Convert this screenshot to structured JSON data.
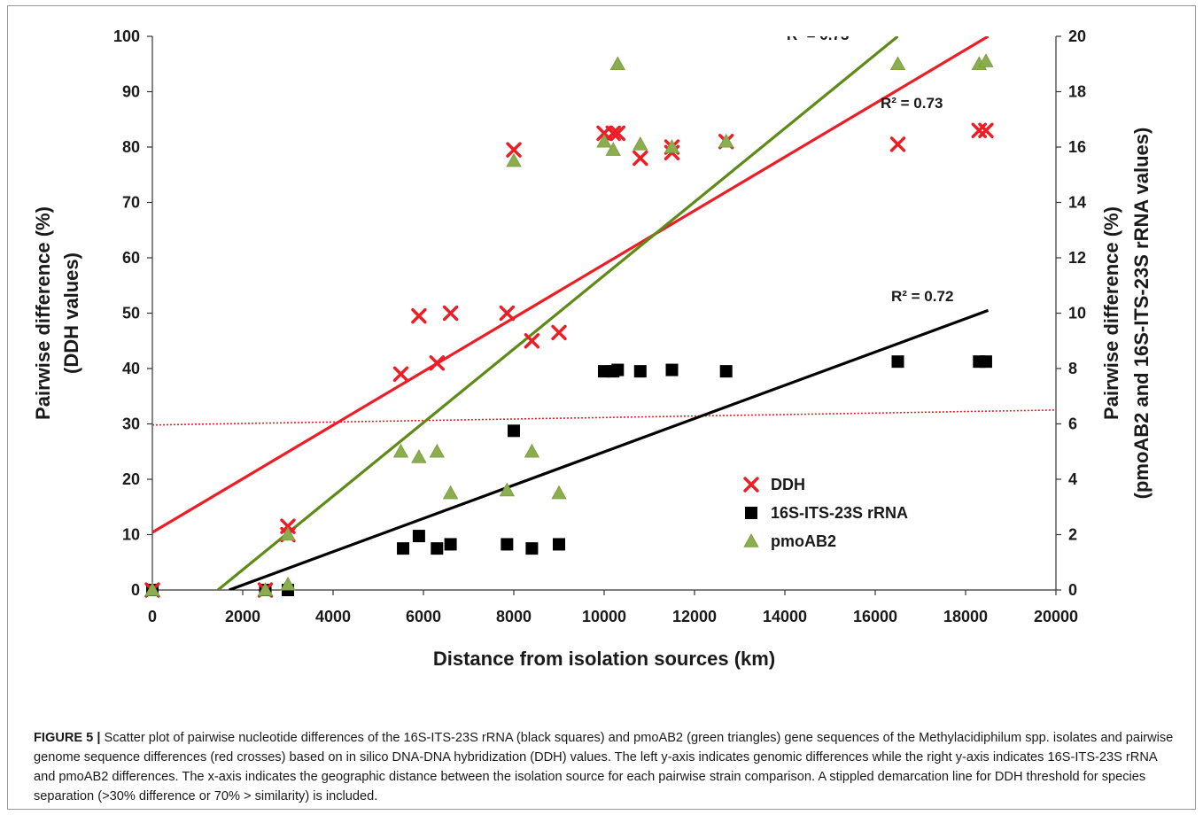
{
  "chart_data": {
    "type": "scatter",
    "xlabel": "Distance from isolation sources (km)",
    "ylabel_left": [
      "Pairwise difference (%)",
      "(DDH values)"
    ],
    "ylabel_right": [
      "Pairwise difference (%)",
      "(pmoAB2 and 16S-ITS-23S rRNA values)"
    ],
    "xlim": [
      0,
      20000
    ],
    "ylim_left": [
      0,
      100
    ],
    "ylim_right": [
      0,
      20
    ],
    "x_ticks": [
      0,
      2000,
      4000,
      6000,
      8000,
      10000,
      12000,
      14000,
      16000,
      18000,
      20000
    ],
    "y_ticks_left": [
      0,
      10,
      20,
      30,
      40,
      50,
      60,
      70,
      80,
      90,
      100
    ],
    "y_ticks_right": [
      0,
      2,
      4,
      6,
      8,
      10,
      12,
      14,
      16,
      18,
      20
    ],
    "grid": false,
    "legend_position": "lower-right",
    "series": [
      {
        "name": "DDH",
        "axis": "left",
        "marker": "x",
        "color": "#ee1c25",
        "points": [
          [
            0,
            0
          ],
          [
            2500,
            0
          ],
          [
            3000,
            11.5
          ],
          [
            3000,
            10
          ],
          [
            5500,
            39
          ],
          [
            5900,
            49.5
          ],
          [
            6300,
            41
          ],
          [
            6600,
            50
          ],
          [
            7850,
            50
          ],
          [
            8000,
            79.5
          ],
          [
            8400,
            45
          ],
          [
            9000,
            46.5
          ],
          [
            10000,
            82.5
          ],
          [
            10200,
            82.5
          ],
          [
            10300,
            82.5
          ],
          [
            10800,
            78
          ],
          [
            11500,
            80
          ],
          [
            11500,
            79
          ],
          [
            12700,
            81
          ],
          [
            16500,
            80.5
          ],
          [
            18300,
            83
          ],
          [
            18450,
            83
          ]
        ],
        "trendline": {
          "x": [
            0,
            18500
          ],
          "y": [
            10.4,
            100
          ],
          "r2_label": "R² = 0.73"
        }
      },
      {
        "name": "16S-ITS-23S rRNA",
        "axis": "right",
        "marker": "square",
        "color": "#000000",
        "points": [
          [
            0,
            0
          ],
          [
            2500,
            0
          ],
          [
            3000,
            0
          ],
          [
            5550,
            1.5
          ],
          [
            5900,
            1.95
          ],
          [
            6300,
            1.5
          ],
          [
            6600,
            1.65
          ],
          [
            7850,
            1.65
          ],
          [
            8000,
            5.75
          ],
          [
            8400,
            1.5
          ],
          [
            9000,
            1.65
          ],
          [
            10000,
            7.9
          ],
          [
            10200,
            7.9
          ],
          [
            10300,
            7.95
          ],
          [
            10800,
            7.9
          ],
          [
            11500,
            7.95
          ],
          [
            12700,
            7.9
          ],
          [
            16500,
            8.25
          ],
          [
            18300,
            8.25
          ],
          [
            18450,
            8.25
          ]
        ],
        "trendline": {
          "x": [
            1700,
            18500
          ],
          "y": [
            0,
            10.1
          ],
          "r2_label": "R² = 0.72"
        }
      },
      {
        "name": "pmoAB2",
        "axis": "right",
        "marker": "triangle",
        "color": "#8aad4e",
        "points": [
          [
            0,
            0
          ],
          [
            2500,
            0
          ],
          [
            3000,
            0.2
          ],
          [
            3000,
            2
          ],
          [
            5500,
            5
          ],
          [
            5900,
            4.8
          ],
          [
            6300,
            5
          ],
          [
            6600,
            3.5
          ],
          [
            7850,
            3.6
          ],
          [
            8000,
            15.5
          ],
          [
            8400,
            5
          ],
          [
            9000,
            3.5
          ],
          [
            10000,
            16.2
          ],
          [
            10200,
            15.9
          ],
          [
            10300,
            19
          ],
          [
            10800,
            16.1
          ],
          [
            11500,
            16
          ],
          [
            12700,
            16.2
          ],
          [
            16500,
            19
          ],
          [
            18300,
            19
          ],
          [
            18450,
            19.1
          ]
        ],
        "trendline": {
          "x": [
            1450,
            16500
          ],
          "y": [
            0,
            20
          ],
          "r2_label": "R² = 0.73"
        }
      }
    ],
    "threshold_line": {
      "axis": "left",
      "y_start": 29.8,
      "y_end": 32.5,
      "style": "dotted",
      "color": "#ee1c25"
    }
  },
  "caption": {
    "label": "FIGURE 5 |",
    "text": " Scatter plot of pairwise nucleotide differences of the 16S-ITS-23S rRNA (black squares) and pmoAB2 (green triangles) gene sequences of the Methylacidiphilum spp. isolates and pairwise genome sequence differences (red crosses) based on in silico DNA-DNA hybridization (DDH) values. The left y-axis indicates genomic differences while the right y-axis indicates 16S-ITS-23S rRNA and pmoAB2 differences. The x-axis indicates the geographic distance between the isolation source for each pairwise strain comparison. A stippled demarcation line for DDH threshold for species separation (>30% difference or 70% > similarity) is included."
  }
}
